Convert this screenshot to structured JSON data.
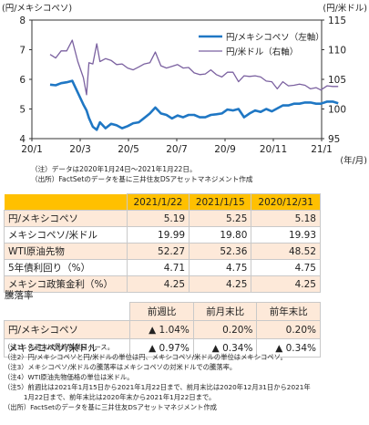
{
  "chart_data": {
    "type": "line",
    "left_unit": "(円/メキシコペソ)",
    "right_unit": "(円/米ドル)",
    "x_ticks": [
      "20/1",
      "20/3",
      "20/5",
      "20/7",
      "20/9",
      "20/11",
      "21/1"
    ],
    "x_unit": "(年/月)",
    "y_left_ticks": [
      "4",
      "5",
      "6",
      "7",
      "8"
    ],
    "y_left_range": [
      4,
      8
    ],
    "y_right_ticks": [
      "95",
      "100",
      "105",
      "110",
      "115"
    ],
    "y_right_range": [
      95,
      115
    ],
    "grid": false,
    "legend_position": "top-right",
    "series": [
      {
        "name": "円/メキシコペソ（左軸）",
        "axis": "left",
        "color": "#1f77c4",
        "points": [
          [
            "2020-01-24",
            5.82
          ],
          [
            "2020-01-31",
            5.8
          ],
          [
            "2020-02-07",
            5.87
          ],
          [
            "2020-02-14",
            5.9
          ],
          [
            "2020-02-21",
            5.95
          ],
          [
            "2020-02-28",
            5.55
          ],
          [
            "2020-03-06",
            5.15
          ],
          [
            "2020-03-10",
            4.95
          ],
          [
            "2020-03-13",
            4.7
          ],
          [
            "2020-03-18",
            4.4
          ],
          [
            "2020-03-23",
            4.3
          ],
          [
            "2020-03-27",
            4.55
          ],
          [
            "2020-04-03",
            4.35
          ],
          [
            "2020-04-10",
            4.5
          ],
          [
            "2020-04-17",
            4.45
          ],
          [
            "2020-04-24",
            4.35
          ],
          [
            "2020-05-01",
            4.42
          ],
          [
            "2020-05-08",
            4.52
          ],
          [
            "2020-05-15",
            4.55
          ],
          [
            "2020-05-22",
            4.7
          ],
          [
            "2020-05-29",
            4.85
          ],
          [
            "2020-06-05",
            5.05
          ],
          [
            "2020-06-12",
            4.85
          ],
          [
            "2020-06-19",
            4.8
          ],
          [
            "2020-06-26",
            4.68
          ],
          [
            "2020-07-03",
            4.78
          ],
          [
            "2020-07-10",
            4.72
          ],
          [
            "2020-07-17",
            4.8
          ],
          [
            "2020-07-24",
            4.8
          ],
          [
            "2020-07-31",
            4.72
          ],
          [
            "2020-08-07",
            4.72
          ],
          [
            "2020-08-14",
            4.8
          ],
          [
            "2020-08-21",
            4.82
          ],
          [
            "2020-08-28",
            4.85
          ],
          [
            "2020-09-04",
            4.98
          ],
          [
            "2020-09-11",
            4.95
          ],
          [
            "2020-09-18",
            5.0
          ],
          [
            "2020-09-25",
            4.72
          ],
          [
            "2020-10-02",
            4.85
          ],
          [
            "2020-10-09",
            4.95
          ],
          [
            "2020-10-16",
            4.9
          ],
          [
            "2020-10-23",
            5.0
          ],
          [
            "2020-10-30",
            4.92
          ],
          [
            "2020-11-06",
            5.02
          ],
          [
            "2020-11-13",
            5.12
          ],
          [
            "2020-11-20",
            5.12
          ],
          [
            "2020-11-27",
            5.18
          ],
          [
            "2020-12-04",
            5.18
          ],
          [
            "2020-12-11",
            5.22
          ],
          [
            "2020-12-18",
            5.22
          ],
          [
            "2020-12-25",
            5.18
          ],
          [
            "2020-12-31",
            5.18
          ],
          [
            "2021-01-08",
            5.25
          ],
          [
            "2021-01-15",
            5.25
          ],
          [
            "2021-01-22",
            5.19
          ]
        ]
      },
      {
        "name": "円/米ドル（右軸）",
        "axis": "right",
        "color": "#7b61a0",
        "points": [
          [
            "2020-01-24",
            109.2
          ],
          [
            "2020-01-31",
            108.6
          ],
          [
            "2020-02-07",
            109.8
          ],
          [
            "2020-02-14",
            109.8
          ],
          [
            "2020-02-21",
            111.6
          ],
          [
            "2020-02-28",
            108.0
          ],
          [
            "2020-03-06",
            105.3
          ],
          [
            "2020-03-10",
            102.4
          ],
          [
            "2020-03-13",
            107.8
          ],
          [
            "2020-03-18",
            107.6
          ],
          [
            "2020-03-23",
            111.0
          ],
          [
            "2020-03-27",
            108.0
          ],
          [
            "2020-04-03",
            108.5
          ],
          [
            "2020-04-10",
            108.2
          ],
          [
            "2020-04-17",
            107.5
          ],
          [
            "2020-04-24",
            107.6
          ],
          [
            "2020-05-01",
            106.9
          ],
          [
            "2020-05-08",
            106.6
          ],
          [
            "2020-05-15",
            107.1
          ],
          [
            "2020-05-22",
            107.6
          ],
          [
            "2020-05-29",
            107.8
          ],
          [
            "2020-06-05",
            109.6
          ],
          [
            "2020-06-12",
            107.3
          ],
          [
            "2020-06-19",
            106.9
          ],
          [
            "2020-06-26",
            107.2
          ],
          [
            "2020-07-03",
            107.5
          ],
          [
            "2020-07-10",
            106.9
          ],
          [
            "2020-07-17",
            107.0
          ],
          [
            "2020-07-24",
            106.1
          ],
          [
            "2020-07-31",
            105.8
          ],
          [
            "2020-08-07",
            105.9
          ],
          [
            "2020-08-14",
            106.6
          ],
          [
            "2020-08-21",
            105.8
          ],
          [
            "2020-08-28",
            105.4
          ],
          [
            "2020-09-04",
            106.2
          ],
          [
            "2020-09-11",
            106.2
          ],
          [
            "2020-09-18",
            104.6
          ],
          [
            "2020-09-25",
            105.6
          ],
          [
            "2020-10-02",
            105.5
          ],
          [
            "2020-10-09",
            105.6
          ],
          [
            "2020-10-16",
            105.4
          ],
          [
            "2020-10-23",
            104.7
          ],
          [
            "2020-10-30",
            104.6
          ],
          [
            "2020-11-06",
            103.4
          ],
          [
            "2020-11-13",
            104.6
          ],
          [
            "2020-11-20",
            103.9
          ],
          [
            "2020-11-27",
            104.0
          ],
          [
            "2020-12-04",
            104.2
          ],
          [
            "2020-12-11",
            104.0
          ],
          [
            "2020-12-18",
            103.4
          ],
          [
            "2020-12-25",
            103.6
          ],
          [
            "2020-12-31",
            103.2
          ],
          [
            "2021-01-08",
            103.9
          ],
          [
            "2021-01-15",
            103.8
          ],
          [
            "2021-01-22",
            103.8
          ]
        ]
      }
    ]
  },
  "chart_notes": {
    "note1": "（注）データは2020年1月24日～2021年1月22日。",
    "note2": "（出所）FactSetのデータを基に三井住友DSアセットマネジメント作成"
  },
  "table1": {
    "headers": [
      "2021/1/22",
      "2021/1/15",
      "2020/12/31"
    ],
    "rows": [
      {
        "label": "円/メキシコペソ",
        "values": [
          "5.19",
          "5.25",
          "5.18"
        ]
      },
      {
        "label": "メキシコペソ/米ドル",
        "values": [
          "19.99",
          "19.80",
          "19.93"
        ]
      },
      {
        "label": "WTI原油先物",
        "values": [
          "52.27",
          "52.36",
          "48.52"
        ]
      },
      {
        "label": "5年債利回り（%）",
        "values": [
          "4.71",
          "4.75",
          "4.75"
        ]
      },
      {
        "label": "メキシコ政策金利（%）",
        "values": [
          "4.25",
          "4.25",
          "4.25"
        ]
      }
    ]
  },
  "rate_table": {
    "title": "騰落率",
    "headers": [
      "前週比",
      "前月末比",
      "前年末比"
    ],
    "rows": [
      {
        "label": "円/メキシコペソ",
        "values": [
          "▲ 1.04%",
          "0.20%",
          "0.20%"
        ]
      },
      {
        "label": "メキシコペソ/米ドル",
        "values": [
          "▲ 0.97%",
          "▲ 0.34%",
          "▲ 0.34%"
        ]
      }
    ]
  },
  "footnotes": [
    "（注1）先週末は最終営業日ベース。",
    "（注2）円/メキシコペソと円/米ドルの単位は円、メキシコペソ/米ドルの単位はメキシコペソ。",
    "（注3）メキシコペソ/米ドルの騰落率はメキシコペソの対米ドルでの騰落率。",
    "（注4）WTI原油先物価格の単位は米ドル。",
    "（注5）前週比は2021年1月15日から2021年1月22日まで、前月末比は2020年12月31日から2021年",
    "　　　1月22日まで、前年末比は2020年末から2021年1月22日まで。",
    "（出所）FactSetのデータを基に三井住友DSアセットマネジメント作成"
  ]
}
